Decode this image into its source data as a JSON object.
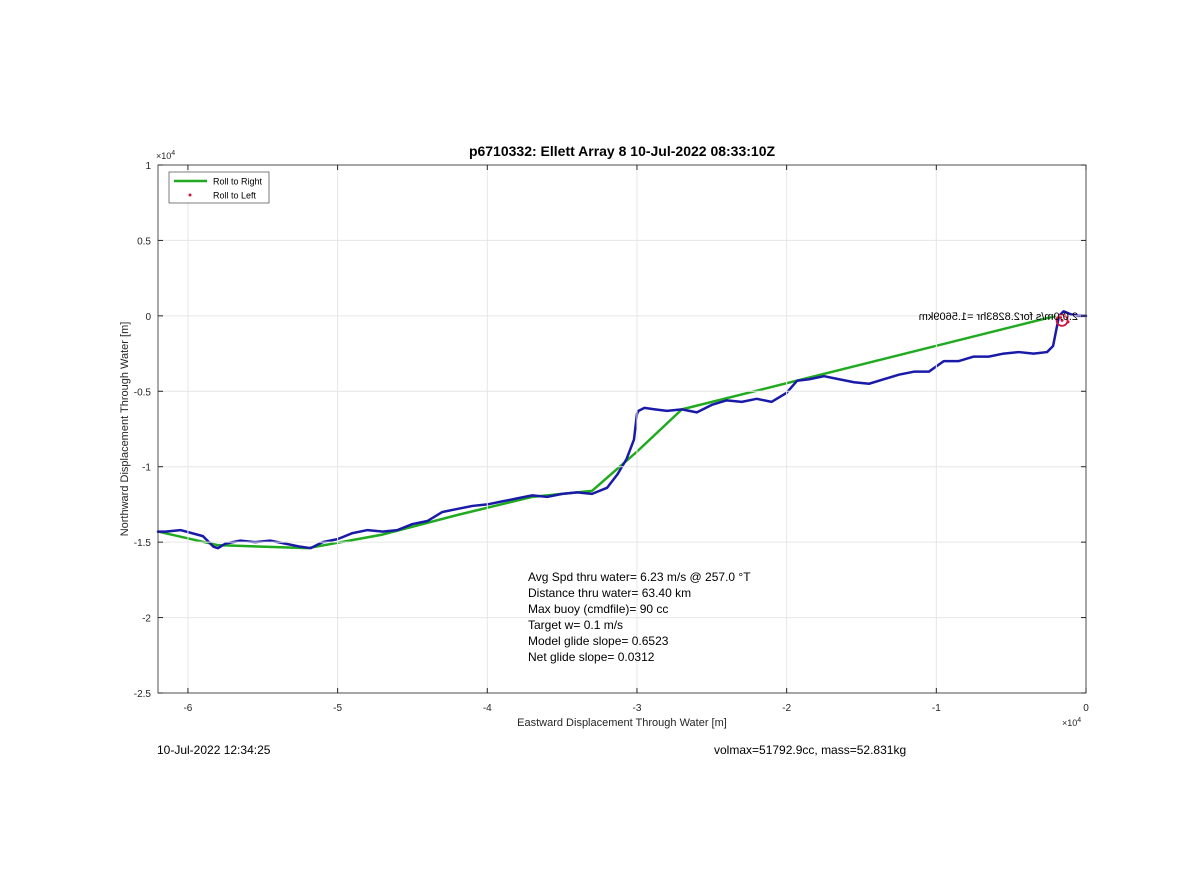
{
  "footer": {
    "timestamp": "10-Jul-2022 12:34:25",
    "info": "volmax=51792.9cc, mass=52.831kg"
  },
  "colors": {
    "roll_right": "#1faa1f",
    "track": "#1a1aa8",
    "roll_left": "#d4143c",
    "grid": "#e6e6e6",
    "axes": "#262626"
  },
  "chart_data": {
    "type": "line",
    "title": "p6710332: Ellett Array 8 10-Jul-2022 08:33:10Z",
    "xlabel": "Eastward Displacement Through Water [m]",
    "ylabel": "Northward Displacement Through Water [m]",
    "x_exponent_label": "×10",
    "x_exponent": "4",
    "y_exponent_label": "×10",
    "y_exponent": "4",
    "xlim": [
      -62000,
      0
    ],
    "ylim": [
      -25000,
      10000
    ],
    "xticks": [
      -60000,
      -50000,
      -40000,
      -30000,
      -20000,
      -10000,
      0
    ],
    "xtick_labels": [
      "-6",
      "-5",
      "-4",
      "-3",
      "-2",
      "-1",
      "0"
    ],
    "yticks": [
      10000,
      5000,
      0,
      -5000,
      -10000,
      -15000,
      -20000,
      -25000
    ],
    "ytick_labels": [
      "1",
      "0.5",
      "0",
      "-0.5",
      "-1",
      "-1.5",
      "-2",
      "-2.5"
    ],
    "grid": true,
    "legend": {
      "placement": "top-left",
      "entries": [
        "Roll to Right",
        "Roll to Left"
      ]
    },
    "series": [
      {
        "name": "Roll to Right",
        "style": "line",
        "x": [
          -62000,
          -58000,
          -52000,
          -47000,
          -42000,
          -37000,
          -33000,
          -30000,
          -27000,
          -2000
        ],
        "y": [
          -14300,
          -15200,
          -15400,
          -14500,
          -13200,
          -12000,
          -11600,
          -9000,
          -6200,
          0
        ]
      },
      {
        "name": "",
        "style": "line",
        "x": [
          -62000,
          -61500,
          -60500,
          -59000,
          -58300,
          -58000,
          -57500,
          -56500,
          -55500,
          -54500,
          -53500,
          -52500,
          -51800,
          -51000,
          -50000,
          -49000,
          -48000,
          -47000,
          -46000,
          -45000,
          -44000,
          -43000,
          -42000,
          -41000,
          -40000,
          -39000,
          -38000,
          -37000,
          -36000,
          -35000,
          -34000,
          -33000,
          -32000,
          -31300,
          -30700,
          -30200,
          -30000,
          -29900,
          -29500,
          -28800,
          -28000,
          -27000,
          -26000,
          -25000,
          -24000,
          -23000,
          -22000,
          -21000,
          -20000,
          -19300,
          -18500,
          -17500,
          -16500,
          -15500,
          -14500,
          -13500,
          -12500,
          -11500,
          -10500,
          -9500,
          -8500,
          -7500,
          -6500,
          -5500,
          -4500,
          -3500,
          -2600,
          -2200,
          -2000,
          -1800,
          -1500,
          -1000,
          -500,
          0
        ],
        "y": [
          -14300,
          -14300,
          -14200,
          -14600,
          -15300,
          -15400,
          -15100,
          -14900,
          -15000,
          -14900,
          -15100,
          -15300,
          -15400,
          -15000,
          -14800,
          -14400,
          -14200,
          -14300,
          -14200,
          -13800,
          -13600,
          -13000,
          -12800,
          -12600,
          -12500,
          -12300,
          -12100,
          -11900,
          -12000,
          -11800,
          -11700,
          -11800,
          -11400,
          -10500,
          -9500,
          -8200,
          -6500,
          -6300,
          -6100,
          -6200,
          -6300,
          -6200,
          -6400,
          -5900,
          -5600,
          -5700,
          -5500,
          -5700,
          -5100,
          -4300,
          -4200,
          -4000,
          -4200,
          -4400,
          -4500,
          -4200,
          -3900,
          -3700,
          -3700,
          -3000,
          -3000,
          -2700,
          -2700,
          -2500,
          -2400,
          -2500,
          -2400,
          -2000,
          -1000,
          0,
          300,
          100,
          0,
          0
        ]
      },
      {
        "name": "Roll to Left",
        "style": "markers",
        "x": [
          -1600,
          -1400,
          -1200,
          -1700
        ],
        "y": [
          -300,
          0,
          -400,
          -100
        ]
      }
    ],
    "mirrored_annotation": "2.0.0m/s for2.8283hr =1.5609km",
    "annotation_lines": [
      "Avg Spd thru water=  6.23 m/s @ 257.0 °T",
      "Distance thru water= 63.40 km",
      "Max buoy (cmdfile)= 90 cc",
      "Target w= 0.1 m/s",
      "Model glide slope= 0.6523",
      "Net glide slope= 0.0312"
    ]
  }
}
